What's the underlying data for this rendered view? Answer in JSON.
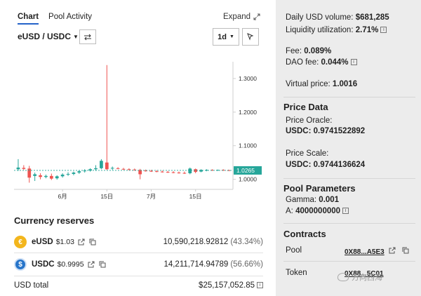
{
  "tabs": [
    {
      "label": "Chart",
      "active": true
    },
    {
      "label": "Pool Activity",
      "active": false
    }
  ],
  "expand_label": "Expand",
  "pair_label": "eUSD / USDC",
  "interval_label": "1d",
  "chart_data": {
    "type": "candlestick",
    "x_tick_labels": [
      "6月",
      "15日",
      "7月",
      "15日"
    ],
    "y_tick_labels": [
      "1.3000",
      "1.2000",
      "1.1000",
      "1.0000"
    ],
    "ylim": [
      0.97,
      1.35
    ],
    "current_price_label": "1.0265",
    "colors": {
      "up": "#26a69a",
      "down": "#ef5350"
    },
    "candles": [
      {
        "o": 1.03,
        "h": 1.06,
        "l": 1.025,
        "c": 1.035
      },
      {
        "o": 1.034,
        "h": 1.042,
        "l": 1.028,
        "c": 1.031
      },
      {
        "o": 1.032,
        "h": 1.04,
        "l": 0.99,
        "c": 1.005
      },
      {
        "o": 1.01,
        "h": 1.02,
        "l": 0.995,
        "c": 1.015
      },
      {
        "o": 1.012,
        "h": 1.018,
        "l": 1.0,
        "c": 1.007
      },
      {
        "o": 1.007,
        "h": 1.014,
        "l": 1.003,
        "c": 1.01
      },
      {
        "o": 1.01,
        "h": 1.017,
        "l": 0.998,
        "c": 1.002
      },
      {
        "o": 1.003,
        "h": 1.012,
        "l": 0.999,
        "c": 1.009
      },
      {
        "o": 1.009,
        "h": 1.018,
        "l": 1.005,
        "c": 1.014
      },
      {
        "o": 1.014,
        "h": 1.021,
        "l": 1.01,
        "c": 1.016
      },
      {
        "o": 1.016,
        "h": 1.023,
        "l": 1.012,
        "c": 1.02
      },
      {
        "o": 1.02,
        "h": 1.027,
        "l": 1.016,
        "c": 1.024
      },
      {
        "o": 1.024,
        "h": 1.03,
        "l": 1.02,
        "c": 1.026
      },
      {
        "o": 1.026,
        "h": 1.033,
        "l": 1.023,
        "c": 1.03
      },
      {
        "o": 1.03,
        "h": 1.042,
        "l": 1.025,
        "c": 1.033
      },
      {
        "o": 1.033,
        "h": 1.06,
        "l": 1.03,
        "c": 1.055
      },
      {
        "o": 1.05,
        "h": 1.34,
        "l": 1.028,
        "c": 1.03
      },
      {
        "o": 1.032,
        "h": 1.038,
        "l": 1.028,
        "c": 1.034
      },
      {
        "o": 1.033,
        "h": 1.036,
        "l": 1.03,
        "c": 1.031
      },
      {
        "o": 1.031,
        "h": 1.034,
        "l": 1.028,
        "c": 1.03
      },
      {
        "o": 1.03,
        "h": 1.033,
        "l": 1.027,
        "c": 1.029
      },
      {
        "o": 1.029,
        "h": 1.032,
        "l": 1.026,
        "c": 1.028
      },
      {
        "o": 1.028,
        "h": 1.031,
        "l": 1.0,
        "c": 1.015
      },
      {
        "o": 1.026,
        "h": 1.029,
        "l": 1.023,
        "c": 1.025
      },
      {
        "o": 1.025,
        "h": 1.028,
        "l": 1.022,
        "c": 1.024
      },
      {
        "o": 1.024,
        "h": 1.027,
        "l": 1.021,
        "c": 1.023
      },
      {
        "o": 1.023,
        "h": 1.026,
        "l": 1.02,
        "c": 1.022
      },
      {
        "o": 1.022,
        "h": 1.025,
        "l": 1.019,
        "c": 1.021
      },
      {
        "o": 1.021,
        "h": 1.024,
        "l": 1.018,
        "c": 1.02
      },
      {
        "o": 1.02,
        "h": 1.023,
        "l": 1.017,
        "c": 1.019
      },
      {
        "o": 1.019,
        "h": 1.023,
        "l": 1.016,
        "c": 1.018
      },
      {
        "o": 1.018,
        "h": 1.035,
        "l": 1.015,
        "c": 1.032
      },
      {
        "o": 1.03,
        "h": 1.032,
        "l": 1.018,
        "c": 1.022
      },
      {
        "o": 1.023,
        "h": 1.03,
        "l": 1.021,
        "c": 1.028
      },
      {
        "o": 1.027,
        "h": 1.03,
        "l": 1.024,
        "c": 1.028
      },
      {
        "o": 1.028,
        "h": 1.03,
        "l": 1.025,
        "c": 1.027
      },
      {
        "o": 1.027,
        "h": 1.029,
        "l": 1.025,
        "c": 1.028
      },
      {
        "o": 1.028,
        "h": 1.03,
        "l": 1.025,
        "c": 1.027
      },
      {
        "o": 1.027,
        "h": 1.029,
        "l": 1.025,
        "c": 1.0265
      }
    ]
  },
  "reserves": {
    "title": "Currency reserves",
    "items": [
      {
        "symbol": "eUSD",
        "price": "$1.03",
        "amount": "10,590,218.92812",
        "percent": "(43.34%)"
      },
      {
        "symbol": "USDC",
        "price": "$0.9995",
        "amount": "14,211,714.94789",
        "percent": "(56.66%)"
      }
    ],
    "total_label": "USD total",
    "total_value": "$25,157,052.85"
  },
  "stats": {
    "daily_volume_label": "Daily USD volume:",
    "daily_volume_value": "$681,285",
    "liquidity_label": "Liquidity utilization:",
    "liquidity_value": "2.71%",
    "fee_label": "Fee:",
    "fee_value": "0.089%",
    "dao_fee_label": "DAO fee:",
    "dao_fee_value": "0.044%",
    "virtual_price_label": "Virtual price:",
    "virtual_price_value": "1.0016"
  },
  "price_data": {
    "title": "Price Data",
    "oracle_label": "Price Oracle:",
    "oracle_value": "USDC: 0.9741522892",
    "scale_label": "Price Scale:",
    "scale_value": "USDC: 0.9744136624"
  },
  "pool_params": {
    "title": "Pool Parameters",
    "gamma_label": "Gamma:",
    "gamma_value": "0.001",
    "a_label": "A:",
    "a_value": "4000000000"
  },
  "contracts": {
    "title": "Contracts",
    "pool_label": "Pool",
    "pool_address": "0X88...A5E3",
    "token_label": "Token",
    "token_address": "0X88...5C01"
  },
  "watermark_text": "方向西海"
}
